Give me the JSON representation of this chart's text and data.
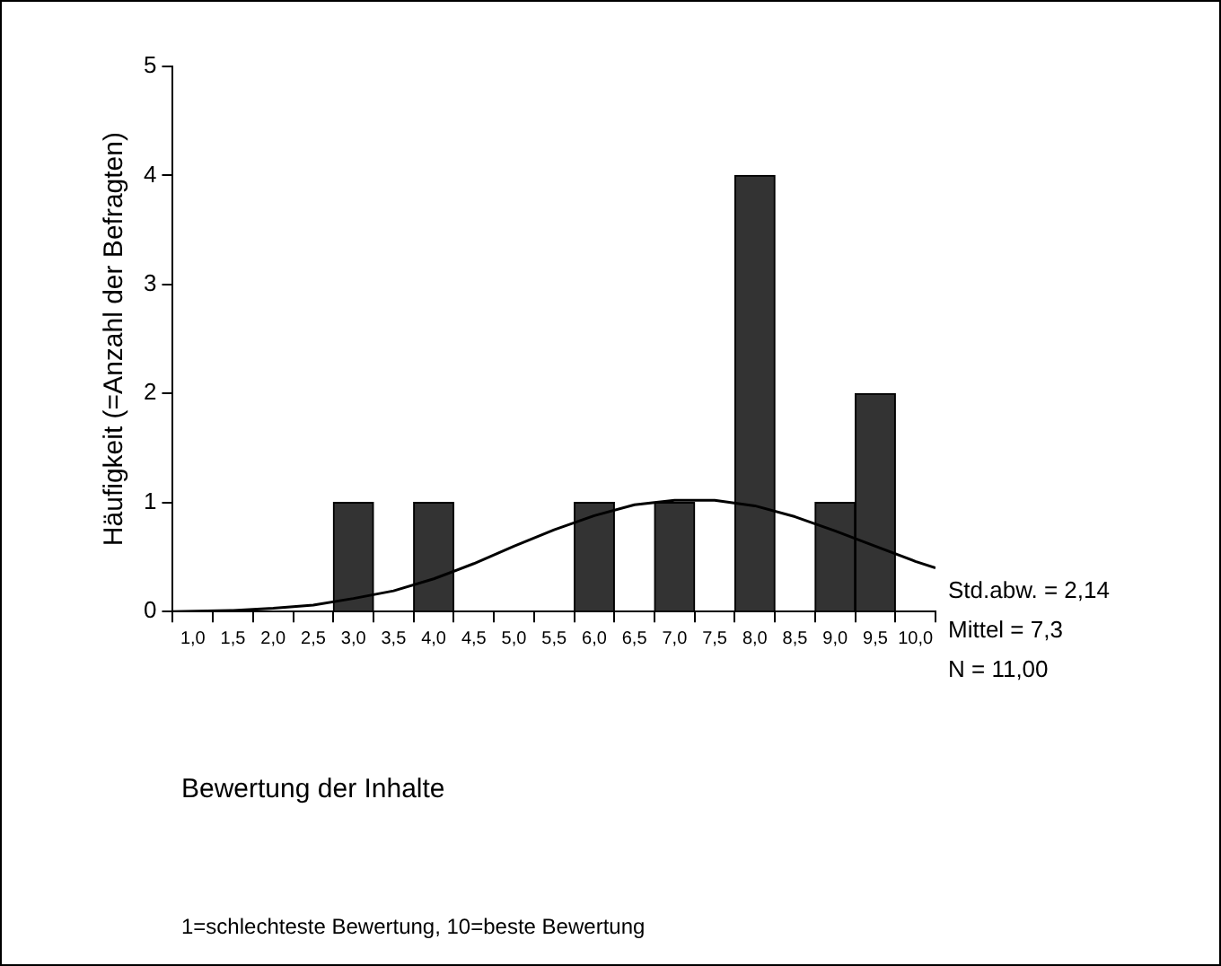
{
  "chart_data": {
    "type": "histogram",
    "xlabel": "Bewertung der Inhalte",
    "ylabel": "Häufigkeit (=Anzahl der Befragten)",
    "bins": [
      0.75,
      1.25,
      1.75,
      2.25,
      2.75,
      3.25,
      3.75,
      4.25,
      4.75,
      5.25,
      5.75,
      6.25,
      6.75,
      7.25,
      7.75,
      8.25,
      8.75,
      9.25,
      9.75,
      10.25
    ],
    "values": [
      0,
      0,
      0,
      0,
      1,
      0,
      1,
      0,
      0,
      0,
      1,
      0,
      1,
      0,
      4,
      0,
      1,
      2,
      0
    ],
    "color": "#333333",
    "series": [
      {
        "type": "line",
        "color": "#000000",
        "x": [
          0.75,
          1.5,
          2.0,
          2.5,
          3.0,
          3.5,
          4.0,
          4.5,
          5.0,
          5.5,
          6.0,
          6.5,
          7.0,
          7.5,
          8.0,
          8.5,
          9.0,
          9.5,
          10.0,
          10.25
        ],
        "values": [
          0,
          0.01,
          0.03,
          0.06,
          0.12,
          0.19,
          0.3,
          0.44,
          0.6,
          0.75,
          0.88,
          0.98,
          1.02,
          1.02,
          0.97,
          0.87,
          0.74,
          0.6,
          0.46,
          0.4
        ]
      }
    ],
    "xlim": [
      0.75,
      10.25
    ],
    "xticks": [
      {
        "value": 1,
        "label": "1,0"
      },
      {
        "value": 1.5,
        "label": "1,5"
      },
      {
        "value": 2,
        "label": "2,0"
      },
      {
        "value": 2.5,
        "label": "2,5"
      },
      {
        "value": 3,
        "label": "3,0"
      },
      {
        "value": 3.5,
        "label": "3,5"
      },
      {
        "value": 4,
        "label": "4,0"
      },
      {
        "value": 4.5,
        "label": "4,5"
      },
      {
        "value": 5,
        "label": "5,0"
      },
      {
        "value": 5.5,
        "label": "5,5"
      },
      {
        "value": 6,
        "label": "6,0"
      },
      {
        "value": 6.5,
        "label": "6,5"
      },
      {
        "value": 7,
        "label": "7,0"
      },
      {
        "value": 7.5,
        "label": "7,5"
      },
      {
        "value": 8,
        "label": "8,0"
      },
      {
        "value": 8.5,
        "label": "8,5"
      },
      {
        "value": 9,
        "label": "9,0"
      },
      {
        "value": 9.5,
        "label": "9,5"
      },
      {
        "value": 10,
        "label": "10,0"
      }
    ],
    "ylim": [
      0,
      5
    ],
    "yticks": [
      0,
      1,
      2,
      3,
      4,
      5
    ],
    "grid": false,
    "legend": false,
    "annotations": [
      "Std.abw. = 2,14",
      "Mittel = 7,3",
      "N = 11,00",
      "1=schlechteste Bewertung, 10=beste Bewertung"
    ]
  }
}
